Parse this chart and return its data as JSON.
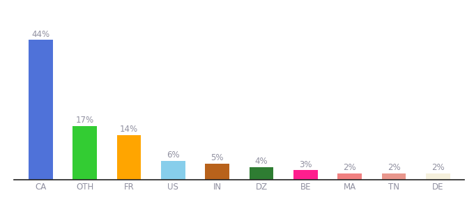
{
  "categories": [
    "CA",
    "OTH",
    "FR",
    "US",
    "IN",
    "DZ",
    "BE",
    "MA",
    "TN",
    "DE"
  ],
  "values": [
    44,
    17,
    14,
    6,
    5,
    4,
    3,
    2,
    2,
    2
  ],
  "bar_colors": [
    "#4f72d9",
    "#33cc33",
    "#ffa500",
    "#87ceeb",
    "#b8621b",
    "#2e7d32",
    "#ff1e8e",
    "#f08080",
    "#e8968c",
    "#f5f0dc"
  ],
  "labels": [
    "44%",
    "17%",
    "14%",
    "6%",
    "5%",
    "4%",
    "3%",
    "2%",
    "2%",
    "2%"
  ],
  "ylim": [
    0,
    52
  ],
  "background_color": "#ffffff",
  "label_color": "#9090a0",
  "label_fontsize": 8.5,
  "tick_color": "#9090a0",
  "tick_fontsize": 8.5,
  "bar_width": 0.55
}
